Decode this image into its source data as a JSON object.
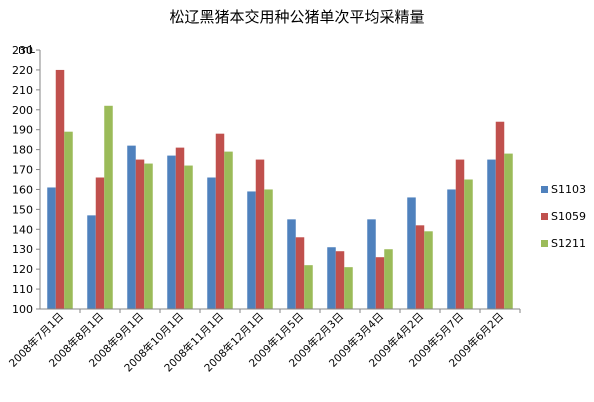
{
  "chart_data": {
    "type": "bar",
    "title": "松辽黑猪本交用种公猪单次平均采精量",
    "ylabel": "mL",
    "xlabel": "",
    "ylim": [
      100,
      230
    ],
    "yticks": [
      100,
      110,
      120,
      130,
      140,
      150,
      160,
      170,
      180,
      190,
      200,
      210,
      220,
      230
    ],
    "grid": false,
    "legend_position": "right",
    "categories": [
      "2008年7月1日",
      "2008年8月1日",
      "2008年9月1日",
      "2008年10月1日",
      "2008年11月1日",
      "2008年12月1日",
      "2009年1月5日",
      "2009年2月3日",
      "2009年3月4日",
      "2009年4月2日",
      "2009年5月7日",
      "2009年6月2日"
    ],
    "series": [
      {
        "name": "S1103",
        "color": "#4F81BD",
        "values": [
          161,
          147,
          182,
          177,
          166,
          159,
          145,
          131,
          145,
          156,
          160,
          175
        ]
      },
      {
        "name": "S1059",
        "color": "#C0504D",
        "values": [
          220,
          166,
          175,
          181,
          188,
          175,
          136,
          129,
          126,
          142,
          175,
          194
        ]
      },
      {
        "name": "S1211",
        "color": "#9BBB59",
        "values": [
          189,
          202,
          173,
          172,
          179,
          160,
          122,
          121,
          130,
          139,
          165,
          178
        ]
      }
    ]
  }
}
